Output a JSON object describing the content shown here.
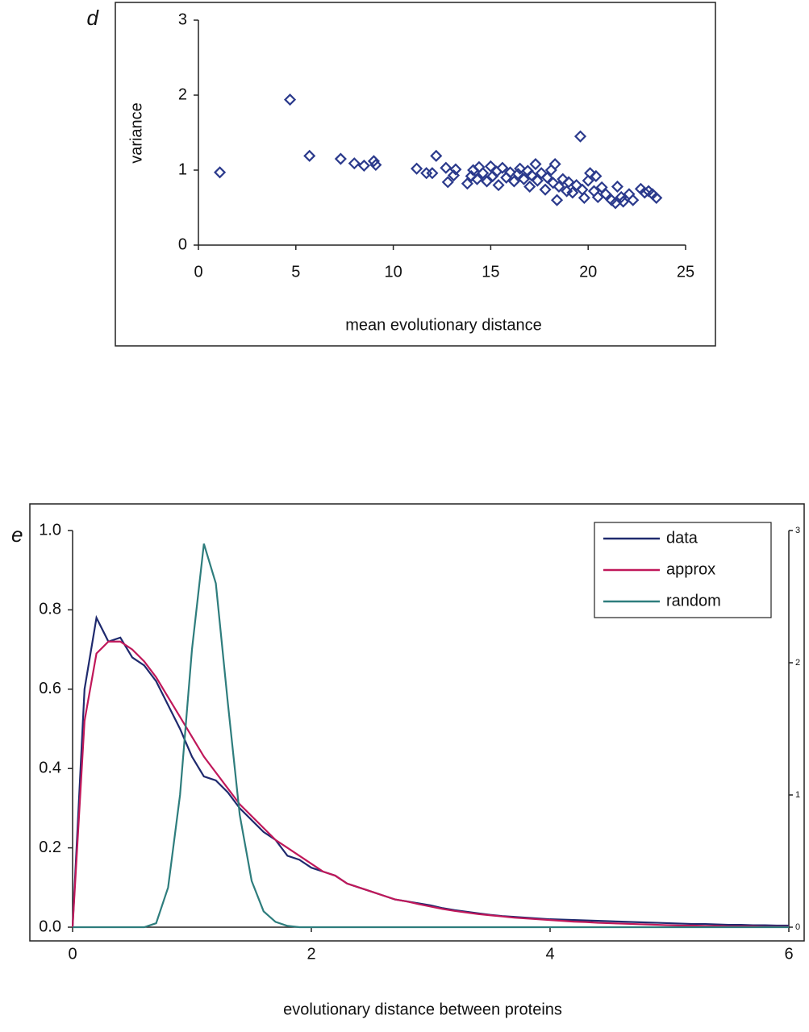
{
  "chart_data": [
    {
      "type": "scatter",
      "panel": "d",
      "xlabel": "mean evolutionary distance",
      "ylabel": "variance",
      "color": "#2b3a8c",
      "x": [
        1.1,
        4.7,
        5.7,
        7.3,
        8.0,
        8.5,
        9.0,
        9.1,
        11.2,
        11.7,
        12.0,
        12.2,
        12.7,
        12.8,
        13.1,
        13.2,
        13.8,
        14.0,
        14.1,
        14.3,
        14.4,
        14.6,
        14.8,
        15.0,
        15.1,
        15.3,
        15.4,
        15.6,
        15.8,
        16.0,
        16.2,
        16.4,
        16.5,
        16.7,
        16.9,
        17.0,
        17.1,
        17.3,
        17.4,
        17.6,
        17.8,
        17.9,
        18.1,
        18.2,
        18.3,
        18.4,
        18.5,
        18.7,
        18.9,
        19.0,
        19.2,
        19.4,
        19.6,
        19.7,
        19.8,
        20.0,
        20.1,
        20.3,
        20.4,
        20.5,
        20.7,
        20.9,
        21.2,
        21.4,
        21.5,
        21.7,
        21.8,
        22.1,
        22.3,
        22.7,
        22.9,
        23.1,
        23.3,
        23.5
      ],
      "values": [
        0.97,
        1.94,
        1.19,
        1.15,
        1.09,
        1.06,
        1.12,
        1.07,
        1.02,
        0.96,
        0.96,
        1.19,
        1.03,
        0.84,
        0.93,
        1.01,
        0.82,
        0.92,
        1.0,
        0.88,
        1.04,
        0.96,
        0.85,
        1.05,
        0.92,
        0.98,
        0.8,
        1.03,
        0.9,
        0.97,
        0.85,
        0.95,
        1.02,
        0.88,
        0.99,
        0.78,
        0.93,
        1.08,
        0.86,
        0.96,
        0.74,
        0.9,
        1.0,
        0.83,
        1.08,
        0.6,
        0.78,
        0.88,
        0.72,
        0.84,
        0.7,
        0.8,
        1.45,
        0.74,
        0.63,
        0.86,
        0.96,
        0.72,
        0.92,
        0.64,
        0.77,
        0.68,
        0.6,
        0.56,
        0.78,
        0.64,
        0.58,
        0.68,
        0.6,
        0.75,
        0.7,
        0.72,
        0.68,
        0.63
      ],
      "xlim": [
        0,
        25
      ],
      "xticks": [
        0,
        5,
        10,
        15,
        20,
        25
      ],
      "ylim": [
        0,
        3
      ],
      "yticks": [
        0,
        1,
        2,
        3
      ]
    },
    {
      "type": "line",
      "panel": "e",
      "xlabel": "evolutionary distance between proteins",
      "legend": "top-right",
      "x": [
        0,
        0.1,
        0.2,
        0.3,
        0.4,
        0.5,
        0.6,
        0.7,
        0.8,
        0.9,
        1.0,
        1.1,
        1.2,
        1.3,
        1.4,
        1.5,
        1.6,
        1.7,
        1.8,
        1.9,
        2.0,
        2.1,
        2.2,
        2.3,
        2.4,
        2.5,
        2.6,
        2.7,
        2.8,
        2.9,
        3.0,
        3.1,
        3.2,
        3.3,
        3.4,
        3.5,
        3.6,
        3.7,
        3.8,
        3.9,
        4.0,
        4.1,
        4.2,
        4.3,
        4.4,
        4.5,
        4.6,
        4.7,
        4.8,
        4.9,
        5.0,
        5.1,
        5.2,
        5.3,
        5.4,
        5.5,
        5.6,
        5.7,
        5.8,
        5.9,
        6.0
      ],
      "series": [
        {
          "name": "data",
          "color": "#1f2a6e",
          "values": [
            0,
            0.6,
            0.78,
            0.72,
            0.73,
            0.68,
            0.66,
            0.62,
            0.56,
            0.5,
            0.43,
            0.38,
            0.37,
            0.34,
            0.3,
            0.27,
            0.24,
            0.22,
            0.18,
            0.17,
            0.15,
            0.14,
            0.13,
            0.11,
            0.1,
            0.09,
            0.08,
            0.07,
            0.065,
            0.06,
            0.055,
            0.048,
            0.043,
            0.039,
            0.035,
            0.031,
            0.028,
            0.026,
            0.024,
            0.022,
            0.02,
            0.019,
            0.018,
            0.017,
            0.016,
            0.015,
            0.014,
            0.013,
            0.012,
            0.011,
            0.01,
            0.009,
            0.008,
            0.008,
            0.007,
            0.006,
            0.006,
            0.005,
            0.005,
            0.004,
            0.004
          ]
        },
        {
          "name": "approx",
          "color": "#c0185a",
          "values": [
            0,
            0.52,
            0.69,
            0.72,
            0.72,
            0.7,
            0.67,
            0.63,
            0.58,
            0.53,
            0.48,
            0.43,
            0.39,
            0.35,
            0.31,
            0.28,
            0.25,
            0.22,
            0.2,
            0.18,
            0.16,
            0.14,
            0.13,
            0.11,
            0.1,
            0.09,
            0.08,
            0.07,
            0.065,
            0.058,
            0.052,
            0.046,
            0.041,
            0.037,
            0.033,
            0.03,
            0.027,
            0.024,
            0.022,
            0.02,
            0.018,
            0.016,
            0.014,
            0.013,
            0.011,
            0.01,
            0.009,
            0.008,
            0.007,
            0.006,
            0.005,
            0.004,
            0.004,
            0.003,
            0.003,
            0.002,
            0.002,
            0.002,
            0.001,
            0.001,
            0.001
          ]
        },
        {
          "name": "random",
          "color": "#2e7d7d",
          "axis": "y2",
          "values": [
            0,
            0,
            0,
            0,
            0,
            0,
            0,
            0.03,
            0.3,
            1.0,
            2.1,
            2.9,
            2.6,
            1.7,
            0.85,
            0.35,
            0.12,
            0.04,
            0.01,
            0,
            0,
            0,
            0,
            0,
            0,
            0,
            0,
            0,
            0,
            0,
            0,
            0,
            0,
            0,
            0,
            0,
            0,
            0,
            0,
            0,
            0,
            0,
            0,
            0,
            0,
            0,
            0,
            0,
            0,
            0,
            0,
            0,
            0,
            0,
            0,
            0,
            0,
            0,
            0,
            0,
            0
          ]
        }
      ],
      "xlim": [
        0,
        6
      ],
      "xticks": [
        0,
        2,
        4,
        6
      ],
      "ylim": [
        0,
        1
      ],
      "yticks": [
        {
          "value": 0,
          "label": "0.0"
        },
        {
          "value": 0.2,
          "label": "0.2"
        },
        {
          "value": 0.4,
          "label": "0.4"
        },
        {
          "value": 0.6,
          "label": "0.6"
        },
        {
          "value": 0.8,
          "label": "0.8"
        },
        {
          "value": 1,
          "label": "1.0"
        }
      ],
      "y2lim": [
        0,
        3
      ],
      "y2ticks": [
        0,
        1,
        2,
        3
      ]
    }
  ]
}
